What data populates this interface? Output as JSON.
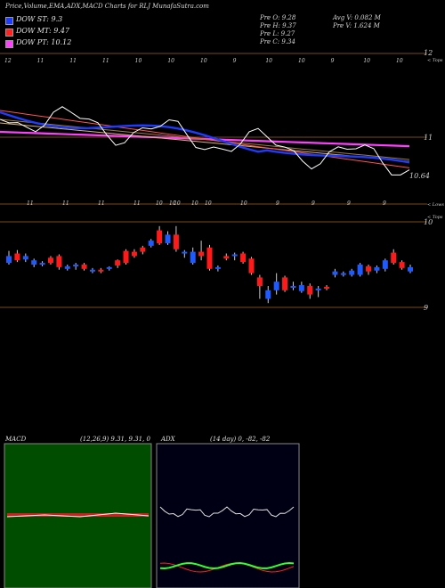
{
  "header": {
    "title": "Price,Volume,EMA,ADX,MACD Charts for RLJ MunafaSutra.com",
    "stats_left": [
      "Pre O: 9.28",
      "Pre H: 9.37",
      "Pre L: 9.27",
      "Pre C: 9.34"
    ],
    "stats_right": [
      "Avg V: 0.082 M",
      "Pre V: 1.624 M"
    ]
  },
  "legend": [
    {
      "label": "DOW ST: 9.3",
      "color": "#1e3cff"
    },
    {
      "label": "DOW MT: 9.47",
      "color": "#ff2020"
    },
    {
      "label": "DOW PT: 10.12",
      "color": "#ff40ff"
    }
  ],
  "price_panel": {
    "right_labels": [
      "12",
      "11",
      "10.64"
    ],
    "top_note": "< Tops",
    "bottom_note": "< Lows",
    "top_dates": [
      "12",
      "11",
      "11",
      "11",
      "10",
      "10",
      "10",
      "9",
      "10",
      "10",
      "9",
      "10",
      "10"
    ],
    "bottom_dates": [
      "11",
      "11",
      "11",
      "11",
      "10",
      "10",
      "10",
      "9",
      "9",
      "9",
      "9"
    ]
  },
  "candle_panel": {
    "right_labels": [
      "< Tops",
      "10",
      "9"
    ],
    "top_dates": [
      "10",
      "10",
      "10"
    ]
  },
  "macd_panel": {
    "title": "MACD",
    "params": "(12,26,9) 9.31, 9.31, 0"
  },
  "adx_panel": {
    "title": "ADX",
    "params": "(14 day) 0, -82, -82"
  },
  "chart_data": {
    "type": "candlestick",
    "ylim_price": [
      9.0,
      10.0
    ],
    "candles": [
      {
        "o": 9.6,
        "c": 9.52,
        "h": 9.66,
        "l": 9.5,
        "color": "blue"
      },
      {
        "o": 9.55,
        "c": 9.63,
        "h": 9.67,
        "l": 9.53,
        "color": "red"
      },
      {
        "o": 9.6,
        "c": 9.56,
        "h": 9.63,
        "l": 9.53,
        "color": "blue"
      },
      {
        "o": 9.55,
        "c": 9.5,
        "h": 9.57,
        "l": 9.47,
        "color": "blue"
      },
      {
        "o": 9.5,
        "c": 9.52,
        "h": 9.54,
        "l": 9.48,
        "color": "blue"
      },
      {
        "o": 9.52,
        "c": 9.58,
        "h": 9.6,
        "l": 9.5,
        "color": "red"
      },
      {
        "o": 9.6,
        "c": 9.47,
        "h": 9.62,
        "l": 9.44,
        "color": "red"
      },
      {
        "o": 9.48,
        "c": 9.45,
        "h": 9.5,
        "l": 9.43,
        "color": "blue"
      },
      {
        "o": 9.48,
        "c": 9.5,
        "h": 9.52,
        "l": 9.44,
        "color": "blue"
      },
      {
        "o": 9.5,
        "c": 9.45,
        "h": 9.52,
        "l": 9.43,
        "color": "red"
      },
      {
        "o": 9.44,
        "c": 9.42,
        "h": 9.46,
        "l": 9.4,
        "color": "blue"
      },
      {
        "o": 9.42,
        "c": 9.44,
        "h": 9.46,
        "l": 9.4,
        "color": "red"
      },
      {
        "o": 9.47,
        "c": 9.45,
        "h": 9.48,
        "l": 9.43,
        "color": "blue"
      },
      {
        "o": 9.49,
        "c": 9.55,
        "h": 9.56,
        "l": 9.46,
        "color": "red"
      },
      {
        "o": 9.52,
        "c": 9.66,
        "h": 9.68,
        "l": 9.5,
        "color": "red"
      },
      {
        "o": 9.6,
        "c": 9.65,
        "h": 9.68,
        "l": 9.58,
        "color": "red"
      },
      {
        "o": 9.7,
        "c": 9.65,
        "h": 9.72,
        "l": 9.62,
        "color": "red"
      },
      {
        "o": 9.78,
        "c": 9.72,
        "h": 9.8,
        "l": 9.7,
        "color": "blue"
      },
      {
        "o": 9.75,
        "c": 9.9,
        "h": 9.95,
        "l": 9.73,
        "color": "red"
      },
      {
        "o": 9.85,
        "c": 9.75,
        "h": 9.89,
        "l": 9.73,
        "color": "blue"
      },
      {
        "o": 9.85,
        "c": 9.68,
        "h": 9.95,
        "l": 9.65,
        "color": "red"
      },
      {
        "o": 9.65,
        "c": 9.63,
        "h": 9.67,
        "l": 9.58,
        "color": "blue"
      },
      {
        "o": 9.65,
        "c": 9.52,
        "h": 9.7,
        "l": 9.5,
        "color": "blue"
      },
      {
        "o": 9.65,
        "c": 9.6,
        "h": 9.78,
        "l": 9.55,
        "color": "red"
      },
      {
        "o": 9.7,
        "c": 9.45,
        "h": 9.73,
        "l": 9.43,
        "color": "red"
      },
      {
        "o": 9.47,
        "c": 9.45,
        "h": 9.49,
        "l": 9.42,
        "color": "blue"
      },
      {
        "o": 9.6,
        "c": 9.57,
        "h": 9.63,
        "l": 9.55,
        "color": "red"
      },
      {
        "o": 9.62,
        "c": 9.6,
        "h": 9.64,
        "l": 9.55,
        "color": "blue"
      },
      {
        "o": 9.63,
        "c": 9.53,
        "h": 9.65,
        "l": 9.51,
        "color": "red"
      },
      {
        "o": 9.57,
        "c": 9.4,
        "h": 9.59,
        "l": 9.38,
        "color": "red"
      },
      {
        "o": 9.35,
        "c": 9.25,
        "h": 9.38,
        "l": 9.1,
        "color": "red"
      },
      {
        "o": 9.2,
        "c": 9.1,
        "h": 9.25,
        "l": 9.05,
        "color": "blue"
      },
      {
        "o": 9.3,
        "c": 9.2,
        "h": 9.4,
        "l": 9.15,
        "color": "blue"
      },
      {
        "o": 9.35,
        "c": 9.2,
        "h": 9.37,
        "l": 9.18,
        "color": "red"
      },
      {
        "o": 9.25,
        "c": 9.24,
        "h": 9.3,
        "l": 9.2,
        "color": "blue"
      },
      {
        "o": 9.26,
        "c": 9.19,
        "h": 9.3,
        "l": 9.17,
        "color": "blue"
      },
      {
        "o": 9.25,
        "c": 9.15,
        "h": 9.28,
        "l": 9.1,
        "color": "red"
      },
      {
        "o": 9.22,
        "c": 9.2,
        "h": 9.25,
        "l": 9.12,
        "color": "blue"
      },
      {
        "o": 9.24,
        "c": 9.22,
        "h": 9.26,
        "l": 9.2,
        "color": "red"
      },
      {
        "o": 9.38,
        "c": 9.42,
        "h": 9.45,
        "l": 9.35,
        "color": "blue"
      },
      {
        "o": 9.4,
        "c": 9.38,
        "h": 9.42,
        "l": 9.36,
        "color": "blue"
      },
      {
        "o": 9.38,
        "c": 9.43,
        "h": 9.45,
        "l": 9.36,
        "color": "blue"
      },
      {
        "o": 9.38,
        "c": 9.5,
        "h": 9.52,
        "l": 9.36,
        "color": "blue"
      },
      {
        "o": 9.48,
        "c": 9.42,
        "h": 9.5,
        "l": 9.38,
        "color": "red"
      },
      {
        "o": 9.43,
        "c": 9.47,
        "h": 9.49,
        "l": 9.4,
        "color": "blue"
      },
      {
        "o": 9.45,
        "c": 9.55,
        "h": 9.57,
        "l": 9.42,
        "color": "blue"
      },
      {
        "o": 9.64,
        "c": 9.52,
        "h": 9.68,
        "l": 9.5,
        "color": "red"
      },
      {
        "o": 9.53,
        "c": 9.46,
        "h": 9.55,
        "l": 9.44,
        "color": "red"
      },
      {
        "o": 9.47,
        "c": 9.42,
        "h": 9.5,
        "l": 9.4,
        "color": "blue"
      }
    ]
  }
}
